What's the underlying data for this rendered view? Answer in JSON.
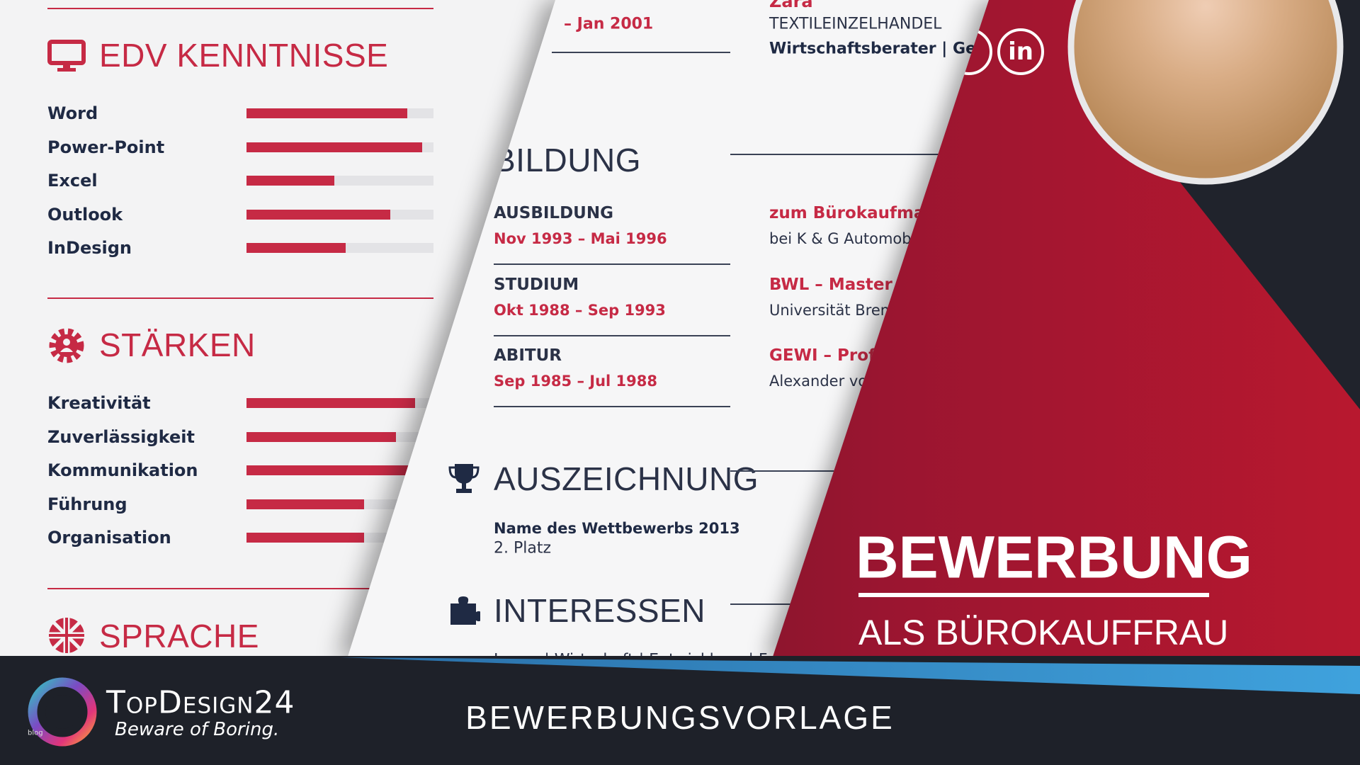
{
  "left_page": {
    "edv": {
      "title": "EDV KENNTNISSE",
      "skills": [
        {
          "name": "Word",
          "level": 0.86
        },
        {
          "name": "Power-Point",
          "level": 0.94
        },
        {
          "name": "Excel",
          "level": 0.47
        },
        {
          "name": "Outlook",
          "level": 0.77
        },
        {
          "name": "InDesign",
          "level": 0.53
        }
      ]
    },
    "staerken": {
      "title": "STÄRKEN",
      "skills": [
        {
          "name": "Kreativität",
          "level": 0.9
        },
        {
          "name": "Zuverlässigkeit",
          "level": 0.8
        },
        {
          "name": "Kommunikation",
          "level": 0.88
        },
        {
          "name": "Führung",
          "level": 0.63
        },
        {
          "name": "Organisation",
          "level": 0.63
        }
      ]
    },
    "sprache": {
      "title": "SPRACHE"
    }
  },
  "middle_page": {
    "job": {
      "date": "– Jan 2001",
      "company": "Zara",
      "sector": "TEXTILEINZELHANDEL",
      "role": "Wirtschaftsberater | Geschäfte"
    },
    "bildung": {
      "title": "BILDUNG",
      "entries": [
        {
          "title": "AUSBILDUNG",
          "date": "Nov 1993 – Mai 1996",
          "subject": "zum Bürokaufmann",
          "place": "bei K & G Automobile"
        },
        {
          "title": "STUDIUM",
          "date": "Okt 1988 – Sep 1993",
          "subject": "BWL – Master of",
          "place": "Universität Bremen"
        },
        {
          "title": "ABITUR",
          "date": "Sep 1985 – Jul 1988",
          "subject": "GEWI – Profil",
          "place": "Alexander von"
        }
      ]
    },
    "auszeichnung": {
      "title": "AUSZEICHNUNG",
      "name": "Name des Wettbewerbs 2013",
      "place": "2. Platz"
    },
    "interessen": {
      "title": "INTERESSEN",
      "text": "Lesen | Wirtschaft | Entwicklung | Fotografie"
    }
  },
  "cover": {
    "social": "in",
    "title": "BEWERBUNG",
    "subtitle": "ALS BÜROKAUFFRAU"
  },
  "footer": {
    "brand": "TopDesign24",
    "slogan": "Beware of Boring.",
    "tag": "blog",
    "caption": "BEWERBUNGSVORLAGE"
  }
}
